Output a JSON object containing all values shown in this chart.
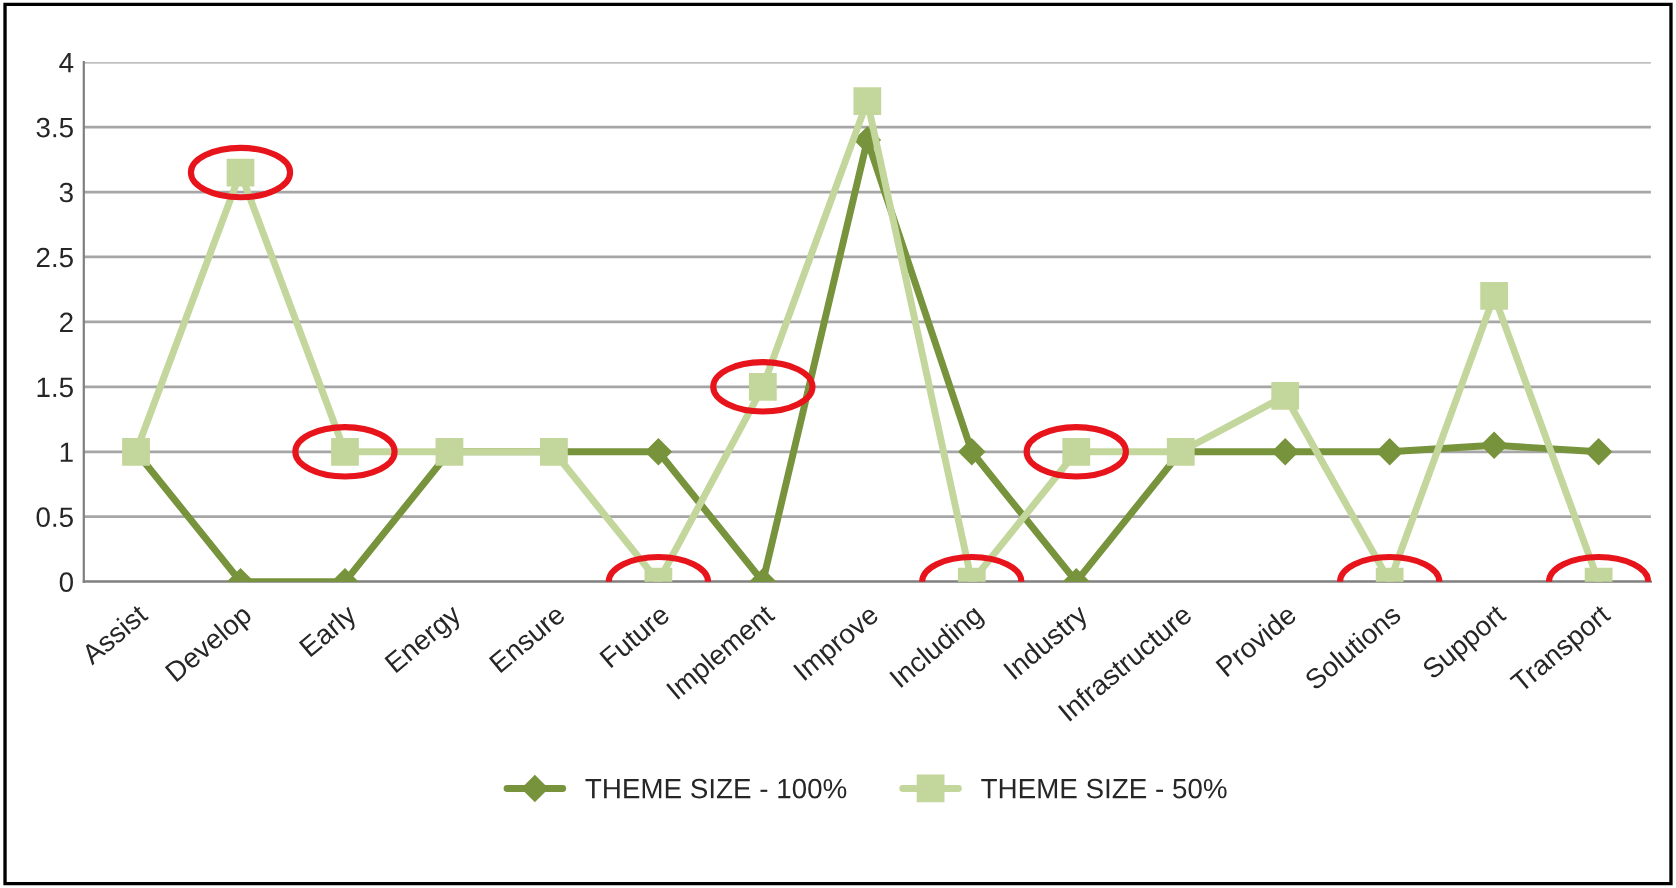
{
  "chart_data": {
    "type": "line",
    "categories": [
      "Assist",
      "Develop",
      "Early",
      "Energy",
      "Ensure",
      "Future",
      "Implement",
      "Improve",
      "Including",
      "Industry",
      "Infrastructure",
      "Provide",
      "Solutions",
      "Support",
      "Transport"
    ],
    "series": [
      {
        "name": "THEME SIZE - 100%",
        "color": "#77933c",
        "marker": "diamond",
        "values": [
          1,
          0,
          0,
          1,
          1,
          1,
          0,
          3.4,
          1,
          0,
          1,
          1,
          1,
          1.05,
          1
        ]
      },
      {
        "name": "THEME SIZE - 50%",
        "color": "#c3d69b",
        "marker": "square",
        "values": [
          1,
          3.15,
          1,
          1,
          1,
          0,
          1.5,
          3.7,
          0,
          1,
          1,
          1.43,
          0,
          2.2,
          0
        ]
      }
    ],
    "ylim": [
      0,
      4
    ],
    "yticks": [
      0,
      0.5,
      1,
      1.5,
      2,
      2.5,
      3,
      3.5,
      4
    ],
    "grid": "y",
    "legend": "bottom",
    "line_style": "solid"
  }
}
